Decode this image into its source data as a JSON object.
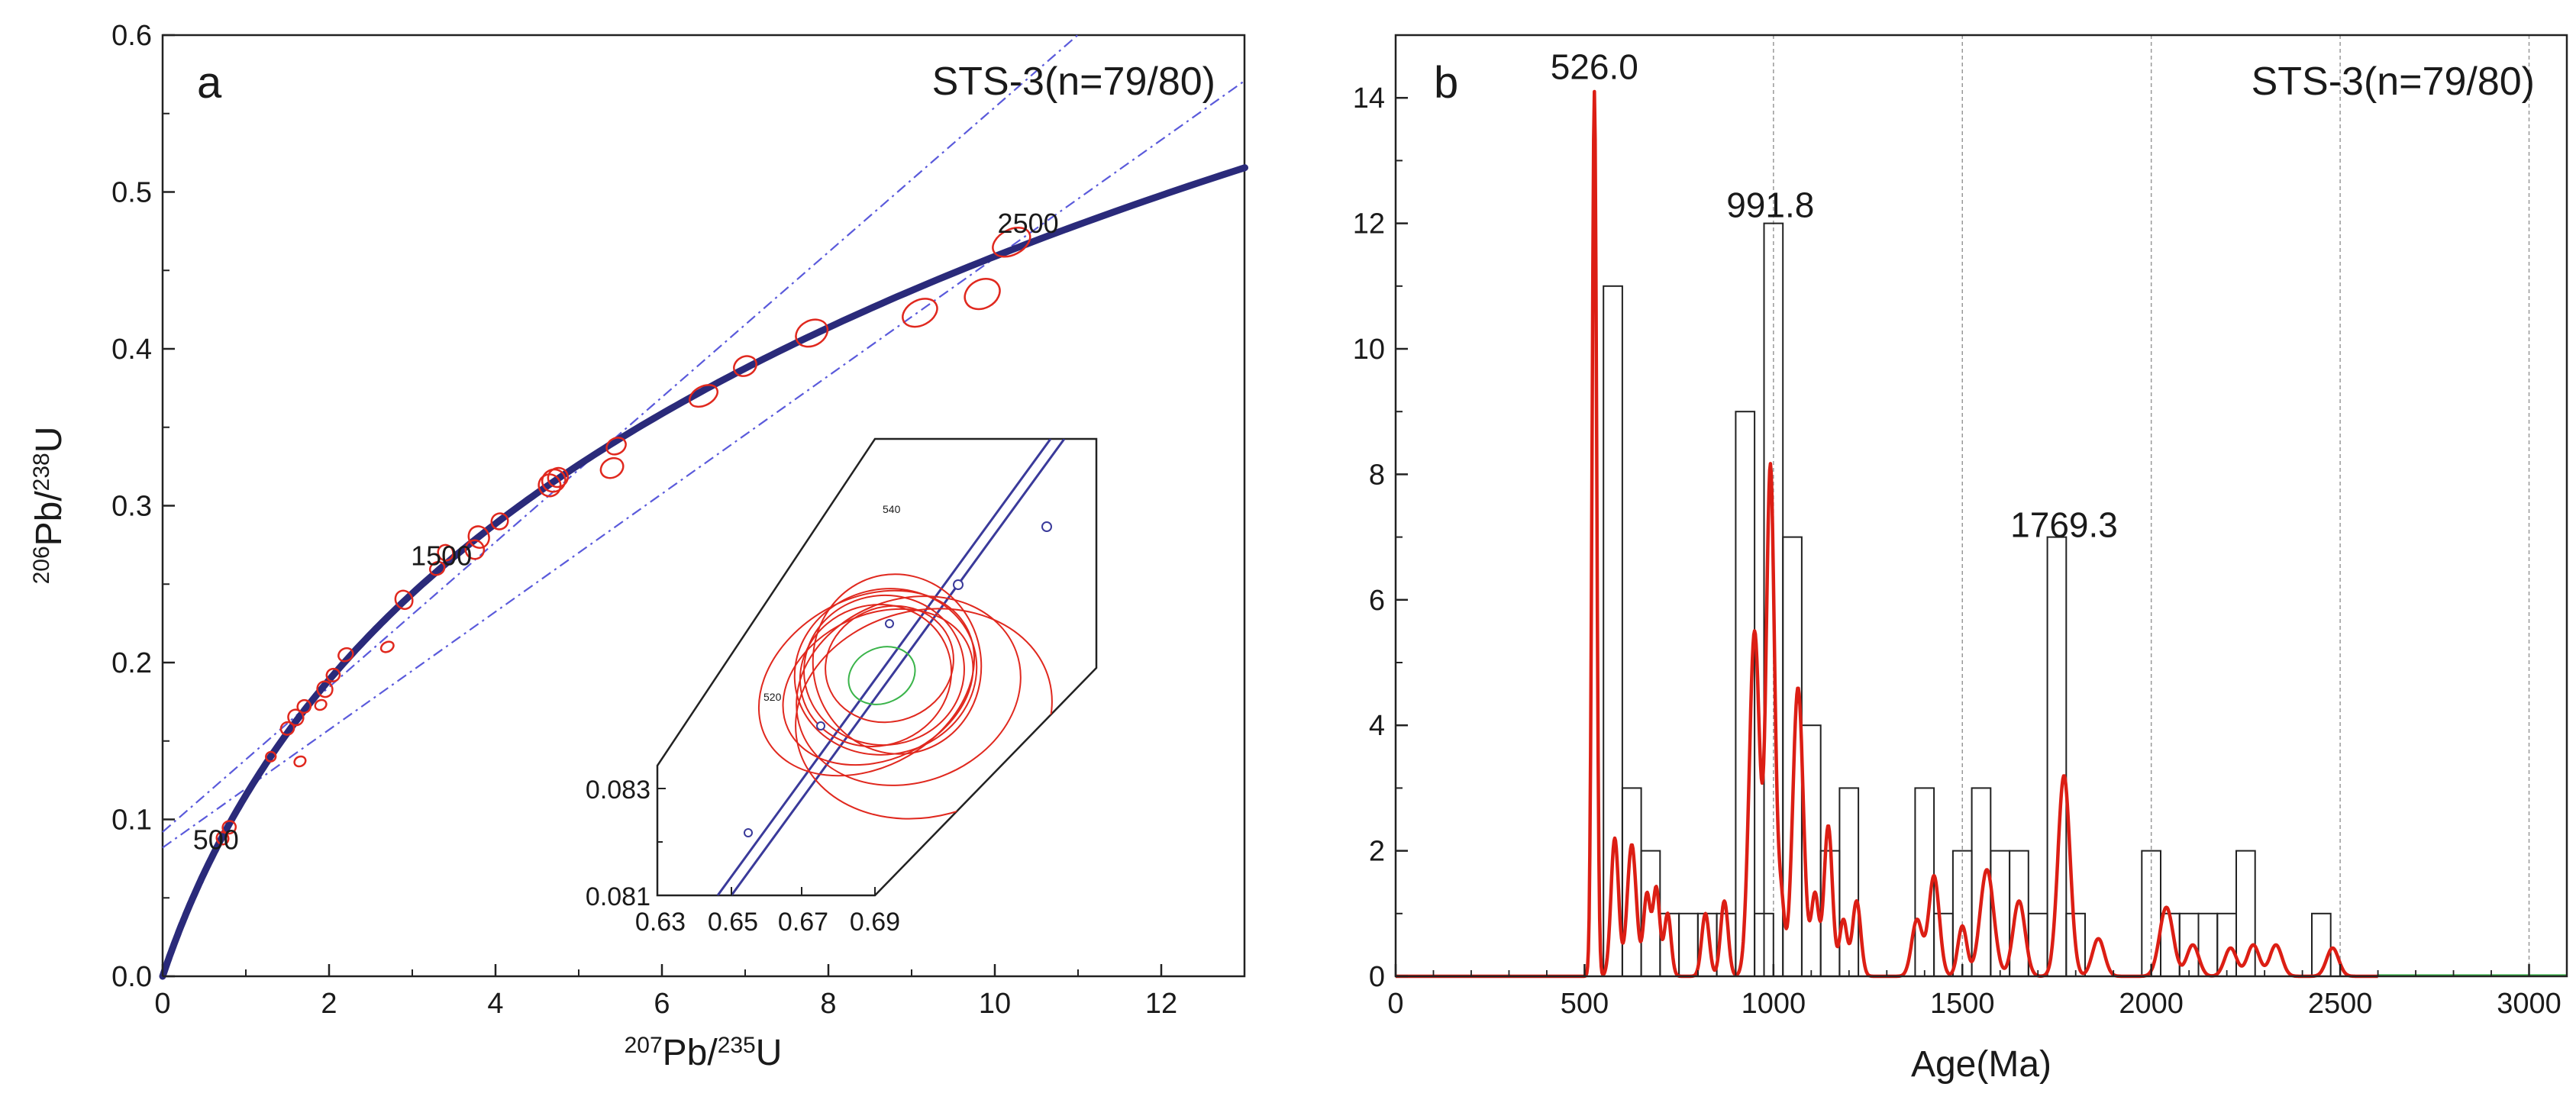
{
  "chart_data": [
    {
      "type": "scatter",
      "panel": "a",
      "sample_label": "STS-3(n=79/80)",
      "xlabel": {
        "pre_sup": "207",
        "text": "Pb/",
        "mid_sup": "235",
        "post": "U"
      },
      "ylabel": {
        "pre_sup": "206",
        "text": "Pb/",
        "mid_sup": "238",
        "post": "U"
      },
      "xlim": [
        0,
        13
      ],
      "ylim": [
        0,
        0.6
      ],
      "x_ticks": [
        0,
        2,
        4,
        6,
        8,
        10,
        12
      ],
      "y_ticks": [
        0.0,
        0.1,
        0.2,
        0.3,
        0.4,
        0.5,
        0.6
      ],
      "y_tick_labels": [
        "0.0",
        "0.1",
        "0.2",
        "0.3",
        "0.4",
        "0.5",
        "0.6"
      ],
      "concordia_age_labels": [
        {
          "label": "500",
          "x": 0.64,
          "y": 0.081
        },
        {
          "label": "1500",
          "x": 3.35,
          "y": 0.262
        },
        {
          "label": "2500",
          "x": 10.4,
          "y": 0.474
        }
      ],
      "discordia_lines": [
        {
          "intercept": 0.092,
          "slope": 0.0462
        },
        {
          "intercept": 0.082,
          "slope": 0.0376
        }
      ],
      "ellipses": [
        {
          "x": 0.72,
          "y": 0.088,
          "rx": 0.07,
          "ry": 0.004
        },
        {
          "x": 0.8,
          "y": 0.095,
          "rx": 0.08,
          "ry": 0.004
        },
        {
          "x": 1.3,
          "y": 0.14,
          "rx": 0.06,
          "ry": 0.003
        },
        {
          "x": 1.5,
          "y": 0.158,
          "rx": 0.08,
          "ry": 0.004
        },
        {
          "x": 1.6,
          "y": 0.165,
          "rx": 0.09,
          "ry": 0.005
        },
        {
          "x": 1.7,
          "y": 0.172,
          "rx": 0.08,
          "ry": 0.004
        },
        {
          "x": 1.65,
          "y": 0.137,
          "rx": 0.07,
          "ry": 0.003
        },
        {
          "x": 1.95,
          "y": 0.183,
          "rx": 0.09,
          "ry": 0.005
        },
        {
          "x": 2.05,
          "y": 0.192,
          "rx": 0.08,
          "ry": 0.004
        },
        {
          "x": 2.2,
          "y": 0.205,
          "rx": 0.09,
          "ry": 0.004
        },
        {
          "x": 1.9,
          "y": 0.173,
          "rx": 0.07,
          "ry": 0.003
        },
        {
          "x": 2.7,
          "y": 0.21,
          "rx": 0.08,
          "ry": 0.003
        },
        {
          "x": 2.9,
          "y": 0.24,
          "rx": 0.1,
          "ry": 0.006
        },
        {
          "x": 3.3,
          "y": 0.26,
          "rx": 0.09,
          "ry": 0.004
        },
        {
          "x": 3.4,
          "y": 0.27,
          "rx": 0.09,
          "ry": 0.005
        },
        {
          "x": 3.75,
          "y": 0.272,
          "rx": 0.11,
          "ry": 0.006
        },
        {
          "x": 3.8,
          "y": 0.28,
          "rx": 0.12,
          "ry": 0.007
        },
        {
          "x": 4.05,
          "y": 0.29,
          "rx": 0.1,
          "ry": 0.005
        },
        {
          "x": 4.65,
          "y": 0.313,
          "rx": 0.13,
          "ry": 0.007
        },
        {
          "x": 4.7,
          "y": 0.316,
          "rx": 0.14,
          "ry": 0.007
        },
        {
          "x": 4.75,
          "y": 0.318,
          "rx": 0.12,
          "ry": 0.006
        },
        {
          "x": 5.4,
          "y": 0.324,
          "rx": 0.14,
          "ry": 0.006
        },
        {
          "x": 5.45,
          "y": 0.338,
          "rx": 0.12,
          "ry": 0.005
        },
        {
          "x": 6.5,
          "y": 0.37,
          "rx": 0.18,
          "ry": 0.006
        },
        {
          "x": 7.0,
          "y": 0.389,
          "rx": 0.14,
          "ry": 0.006
        },
        {
          "x": 7.8,
          "y": 0.41,
          "rx": 0.2,
          "ry": 0.008
        },
        {
          "x": 9.1,
          "y": 0.423,
          "rx": 0.22,
          "ry": 0.008
        },
        {
          "x": 9.85,
          "y": 0.435,
          "rx": 0.22,
          "ry": 0.009
        },
        {
          "x": 10.2,
          "y": 0.468,
          "rx": 0.24,
          "ry": 0.008
        }
      ],
      "inset": {
        "x_ticks": [
          "0.63",
          "0.65",
          "0.67",
          "0.69"
        ],
        "y_ticks": [
          "0.083",
          "0.081"
        ],
        "age_labels": [
          "540",
          "520"
        ]
      }
    },
    {
      "type": "bar",
      "panel": "b",
      "sample_label": "STS-3(n=79/80)",
      "xlabel": "Age(Ma)",
      "ylabel": "",
      "xlim": [
        0,
        3100
      ],
      "ylim": [
        0,
        15
      ],
      "x_ticks": [
        0,
        500,
        1000,
        1500,
        2000,
        2500,
        3000
      ],
      "y_ticks": [
        0,
        2,
        4,
        6,
        8,
        10,
        12,
        14
      ],
      "x_gridlines": [
        1000,
        1500,
        2000,
        2500,
        3000
      ],
      "histogram": {
        "bin_width": 50,
        "bins": [
          {
            "start": 550,
            "count": 11
          },
          {
            "start": 600,
            "count": 3
          },
          {
            "start": 650,
            "count": 2
          },
          {
            "start": 700,
            "count": 1
          },
          {
            "start": 750,
            "count": 1
          },
          {
            "start": 800,
            "count": 1
          },
          {
            "start": 850,
            "count": 1
          },
          {
            "start": 900,
            "count": 9
          },
          {
            "start": 950,
            "count": 1
          },
          {
            "start": 975,
            "count": 12
          },
          {
            "start": 1025,
            "count": 7
          },
          {
            "start": 1075,
            "count": 4
          },
          {
            "start": 1125,
            "count": 2
          },
          {
            "start": 1175,
            "count": 3
          },
          {
            "start": 1375,
            "count": 3
          },
          {
            "start": 1425,
            "count": 1
          },
          {
            "start": 1475,
            "count": 2
          },
          {
            "start": 1525,
            "count": 3
          },
          {
            "start": 1575,
            "count": 2
          },
          {
            "start": 1625,
            "count": 2
          },
          {
            "start": 1675,
            "count": 1
          },
          {
            "start": 1725,
            "count": 7
          },
          {
            "start": 1775,
            "count": 1
          },
          {
            "start": 1975,
            "count": 2
          },
          {
            "start": 2025,
            "count": 1
          },
          {
            "start": 2075,
            "count": 1
          },
          {
            "start": 2125,
            "count": 1
          },
          {
            "start": 2175,
            "count": 1
          },
          {
            "start": 2225,
            "count": 2
          },
          {
            "start": 2425,
            "count": 1
          }
        ]
      },
      "kde_peaks": [
        {
          "age": 526,
          "height": 14.1,
          "width": 6
        },
        {
          "age": 580,
          "height": 2.2,
          "width": 10
        },
        {
          "age": 625,
          "height": 2.1,
          "width": 12
        },
        {
          "age": 665,
          "height": 1.3,
          "width": 9
        },
        {
          "age": 690,
          "height": 1.4,
          "width": 9
        },
        {
          "age": 720,
          "height": 1.0,
          "width": 9
        },
        {
          "age": 820,
          "height": 1.0,
          "width": 10
        },
        {
          "age": 870,
          "height": 1.2,
          "width": 10
        },
        {
          "age": 950,
          "height": 5.5,
          "width": 14
        },
        {
          "age": 992,
          "height": 8.1,
          "width": 11
        },
        {
          "age": 1020,
          "height": 1.2,
          "width": 9
        },
        {
          "age": 1065,
          "height": 4.6,
          "width": 14
        },
        {
          "age": 1110,
          "height": 1.3,
          "width": 10
        },
        {
          "age": 1145,
          "height": 2.4,
          "width": 11
        },
        {
          "age": 1185,
          "height": 0.9,
          "width": 10
        },
        {
          "age": 1220,
          "height": 1.2,
          "width": 11
        },
        {
          "age": 1380,
          "height": 0.9,
          "width": 14
        },
        {
          "age": 1425,
          "height": 1.6,
          "width": 14
        },
        {
          "age": 1500,
          "height": 0.8,
          "width": 12
        },
        {
          "age": 1565,
          "height": 1.7,
          "width": 18
        },
        {
          "age": 1650,
          "height": 1.2,
          "width": 16
        },
        {
          "age": 1769,
          "height": 3.2,
          "width": 16
        },
        {
          "age": 1860,
          "height": 0.6,
          "width": 16
        },
        {
          "age": 2040,
          "height": 1.1,
          "width": 18
        },
        {
          "age": 2110,
          "height": 0.5,
          "width": 16
        },
        {
          "age": 2210,
          "height": 0.45,
          "width": 16
        },
        {
          "age": 2270,
          "height": 0.5,
          "width": 16
        },
        {
          "age": 2330,
          "height": 0.5,
          "width": 16
        },
        {
          "age": 2480,
          "height": 0.45,
          "width": 16
        }
      ],
      "peak_labels": [
        {
          "label": "526.0",
          "age": 526,
          "y": 14.3
        },
        {
          "label": "991.8",
          "age": 991.8,
          "y": 12.1
        },
        {
          "label": "1769.3",
          "age": 1769.3,
          "y": 7.0
        }
      ]
    }
  ],
  "colors": {
    "concordia": "#2a2a7a",
    "discordia": "#5a5adb",
    "ellipse": "#e0281e",
    "kde": "#dc1e14",
    "histogram": "#222222",
    "grid": "#999999",
    "green": "#3ab44a"
  }
}
